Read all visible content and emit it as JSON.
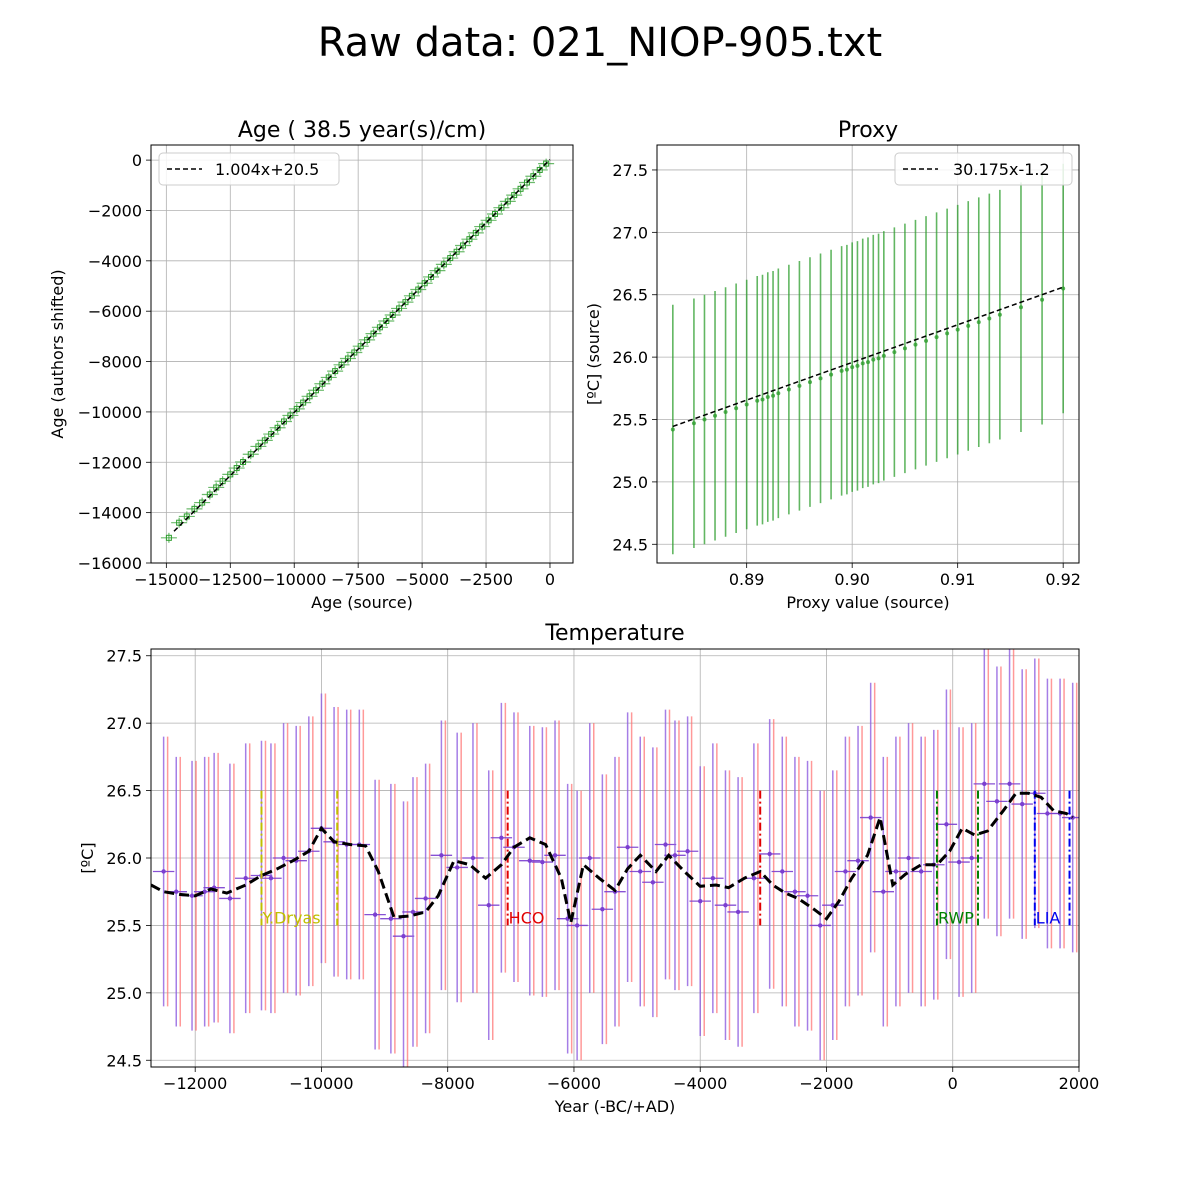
{
  "suptitle": "Raw data: 021_NIOP-905.txt",
  "chart_data": [
    {
      "type": "scatter",
      "title": "Age ( 38.5 year(s)/cm)",
      "xlabel": "Age (source)",
      "ylabel": "Age (authors shifted)",
      "xlim": [
        -15600,
        900
      ],
      "ylim": [
        -16000,
        600
      ],
      "xticks": [
        -15000,
        -12500,
        -10000,
        -7500,
        -5000,
        -2500,
        0
      ],
      "xtick_labels": [
        "−15000",
        "−12500",
        "−10000",
        "−7500",
        "−5000",
        "−2500",
        "0"
      ],
      "yticks": [
        0,
        -2000,
        -4000,
        -6000,
        -8000,
        -10000,
        -12000,
        -14000,
        -16000
      ],
      "ytick_labels": [
        "0",
        "−2000",
        "−4000",
        "−6000",
        "−8000",
        "−10000",
        "−12000",
        "−14000",
        "−16000"
      ],
      "grid": true,
      "legend_position": "top-left",
      "fit": {
        "label": "1.004x+20.5",
        "slope": 1.004,
        "intercept": 20.5,
        "x_range": [
          -14700,
          0
        ]
      },
      "colors": {
        "points": "#2e9e2e",
        "fit": "#000000"
      },
      "x": [
        -14900,
        -14500,
        -14200,
        -13900,
        -13600,
        -13300,
        -13050,
        -12800,
        -12500,
        -12250,
        -12000,
        -11700,
        -11400,
        -11150,
        -10900,
        -10650,
        -10400,
        -10150,
        -9900,
        -9650,
        -9400,
        -9150,
        -8900,
        -8650,
        -8400,
        -8150,
        -7900,
        -7650,
        -7400,
        -7150,
        -6900,
        -6650,
        -6400,
        -6150,
        -5900,
        -5650,
        -5400,
        -5150,
        -4900,
        -4650,
        -4400,
        -4150,
        -3900,
        -3650,
        -3400,
        -3150,
        -2900,
        -2650,
        -2400,
        -2150,
        -1900,
        -1650,
        -1400,
        -1150,
        -900,
        -650,
        -400,
        -150
      ],
      "y": [
        -15000,
        -14400,
        -14150,
        -13850,
        -13600,
        -13280,
        -13000,
        -12750,
        -12480,
        -12230,
        -11990,
        -11680,
        -11370,
        -11130,
        -10880,
        -10630,
        -10380,
        -10140,
        -9880,
        -9630,
        -9380,
        -9140,
        -8880,
        -8630,
        -8380,
        -8130,
        -7880,
        -7640,
        -7390,
        -7140,
        -6890,
        -6640,
        -6390,
        -6150,
        -5890,
        -5640,
        -5390,
        -5140,
        -4890,
        -4640,
        -4390,
        -4140,
        -3890,
        -3640,
        -3390,
        -3140,
        -2890,
        -2640,
        -2390,
        -2140,
        -1890,
        -1640,
        -1390,
        -1140,
        -890,
        -640,
        -390,
        -140
      ]
    },
    {
      "type": "scatter",
      "title": "Proxy",
      "xlabel": "Proxy value (source)",
      "ylabel": "[ºC] (source)",
      "xlim": [
        0.8815,
        0.9215
      ],
      "ylim": [
        24.35,
        27.7
      ],
      "xticks": [
        0.89,
        0.9,
        0.91,
        0.92
      ],
      "xtick_labels": [
        "0.89",
        "0.90",
        "0.91",
        "0.92"
      ],
      "yticks": [
        24.5,
        25.0,
        25.5,
        26.0,
        26.5,
        27.0,
        27.5
      ],
      "ytick_labels": [
        "24.5",
        "25.0",
        "25.5",
        "26.0",
        "26.5",
        "27.0",
        "27.5"
      ],
      "grid": true,
      "legend_position": "top-right",
      "fit": {
        "label": "30.175x-1.2",
        "slope": 30.175,
        "intercept": -1.2,
        "x_range": [
          0.883,
          0.92
        ]
      },
      "colors": {
        "points": "#2e9e2e",
        "fit": "#000000"
      },
      "error_half_width": 1.0,
      "x": [
        0.883,
        0.885,
        0.886,
        0.887,
        0.888,
        0.889,
        0.89,
        0.891,
        0.8915,
        0.892,
        0.8925,
        0.893,
        0.894,
        0.895,
        0.896,
        0.897,
        0.898,
        0.899,
        0.8995,
        0.9,
        0.9005,
        0.901,
        0.9015,
        0.902,
        0.9025,
        0.903,
        0.904,
        0.905,
        0.906,
        0.907,
        0.908,
        0.909,
        0.91,
        0.911,
        0.912,
        0.913,
        0.914,
        0.916,
        0.918,
        0.92
      ],
      "y": [
        25.42,
        25.47,
        25.5,
        25.53,
        25.56,
        25.59,
        25.62,
        25.65,
        25.66,
        25.68,
        25.69,
        25.71,
        25.74,
        25.77,
        25.8,
        25.83,
        25.86,
        25.89,
        25.9,
        25.92,
        25.93,
        25.95,
        25.96,
        25.98,
        25.99,
        26.01,
        26.04,
        26.07,
        26.1,
        26.13,
        26.16,
        26.19,
        26.22,
        26.25,
        26.28,
        26.31,
        26.34,
        26.4,
        26.46,
        26.55
      ]
    },
    {
      "type": "line",
      "title": "Temperature",
      "xlabel": "Year (-BC/+AD)",
      "ylabel": "[ºC]",
      "xlim": [
        -12700,
        2000
      ],
      "ylim": [
        24.45,
        27.55
      ],
      "xticks": [
        -12000,
        -10000,
        -8000,
        -6000,
        -4000,
        -2000,
        0,
        2000
      ],
      "xtick_labels": [
        "−12000",
        "−10000",
        "−8000",
        "−6000",
        "−4000",
        "−2000",
        "0",
        "2000"
      ],
      "yticks": [
        24.5,
        25.0,
        25.5,
        26.0,
        26.5,
        27.0,
        27.5
      ],
      "ytick_labels": [
        "24.5",
        "25.0",
        "25.5",
        "26.0",
        "26.5",
        "27.0",
        "27.5"
      ],
      "grid": true,
      "colors": {
        "points": "#7b3fd0",
        "errors_alt": "#ff6f6f",
        "errors_main": "#8f5fe0",
        "smooth": "#000000"
      },
      "series": [
        {
          "x": [
            -12500,
            -12300,
            -12050,
            -11850,
            -11700,
            -11450,
            -11200,
            -10950,
            -10800,
            -10600,
            -10400,
            -10200,
            -10000,
            -9800,
            -9600,
            -9400,
            -9150,
            -8900,
            -8700,
            -8550,
            -8350,
            -8100,
            -7850,
            -7600,
            -7350,
            -7150,
            -6950,
            -6700,
            -6500,
            -6300,
            -6100,
            -5950,
            -5750,
            -5550,
            -5350,
            -5150,
            -4950,
            -4750,
            -4550,
            -4400,
            -4200,
            -4000,
            -3800,
            -3600,
            -3400,
            -3150,
            -2900,
            -2700,
            -2500,
            -2300,
            -2100,
            -1900,
            -1700,
            -1500,
            -1300,
            -1100,
            -900,
            -700,
            -500,
            -300,
            -100,
            100,
            300,
            500,
            700,
            900,
            1100,
            1300,
            1500,
            1700,
            1900
          ],
          "y": [
            25.9,
            25.75,
            25.72,
            25.75,
            25.78,
            25.7,
            25.85,
            25.87,
            25.85,
            26.0,
            25.98,
            26.05,
            26.22,
            26.12,
            26.1,
            26.1,
            25.58,
            25.55,
            25.42,
            25.6,
            25.7,
            26.02,
            25.93,
            26.0,
            25.65,
            26.15,
            26.08,
            25.98,
            25.97,
            26.02,
            25.55,
            25.5,
            26.0,
            25.62,
            25.75,
            26.08,
            25.9,
            25.82,
            26.1,
            26.02,
            26.05,
            25.68,
            25.85,
            25.65,
            25.6,
            25.85,
            26.03,
            25.9,
            25.75,
            25.72,
            25.5,
            25.65,
            25.9,
            25.98,
            26.3,
            25.75,
            25.9,
            26.0,
            25.9,
            25.95,
            26.25,
            25.97,
            26.0,
            26.55,
            26.42,
            26.55,
            26.4,
            26.48,
            26.33,
            26.33,
            26.3
          ],
          "error_half_width": 1.0,
          "xerr_half_width": 170
        }
      ],
      "smooth": {
        "x": [
          -12700,
          -12500,
          -12250,
          -12000,
          -11750,
          -11500,
          -11200,
          -10950,
          -10700,
          -10450,
          -10200,
          -10000,
          -9800,
          -9550,
          -9300,
          -9100,
          -8850,
          -8600,
          -8350,
          -8150,
          -7900,
          -7650,
          -7400,
          -7150,
          -6950,
          -6700,
          -6450,
          -6200,
          -6050,
          -5850,
          -5600,
          -5350,
          -5150,
          -4950,
          -4700,
          -4500,
          -4250,
          -4000,
          -3750,
          -3550,
          -3300,
          -3050,
          -2850,
          -2650,
          -2450,
          -2200,
          -2000,
          -1800,
          -1600,
          -1350,
          -1150,
          -950,
          -750,
          -500,
          -250,
          -50,
          150,
          350,
          550,
          800,
          1000,
          1200,
          1400,
          1600,
          1800,
          1900
        ],
        "y": [
          25.8,
          25.75,
          25.73,
          25.72,
          25.77,
          25.74,
          25.8,
          25.87,
          25.92,
          25.98,
          26.05,
          26.22,
          26.12,
          26.1,
          26.09,
          25.9,
          25.56,
          25.57,
          25.6,
          25.72,
          25.98,
          25.95,
          25.85,
          25.95,
          26.08,
          26.15,
          26.1,
          25.85,
          25.52,
          25.95,
          25.85,
          25.76,
          25.92,
          26.02,
          25.9,
          26.02,
          25.9,
          25.79,
          25.8,
          25.78,
          25.85,
          25.9,
          25.8,
          25.74,
          25.7,
          25.62,
          25.55,
          25.68,
          25.85,
          26.02,
          26.3,
          25.8,
          25.88,
          25.95,
          25.95,
          26.05,
          26.22,
          26.17,
          26.2,
          26.35,
          26.48,
          26.48,
          26.45,
          26.35,
          26.33,
          26.3
        ]
      },
      "events": [
        {
          "label": "Y.Dryas",
          "x_start": -10950,
          "x_end": -9750,
          "color": "#bfbf00"
        },
        {
          "label": "HCO",
          "x_start": -7050,
          "x_end": -3050,
          "color": "#e00000"
        },
        {
          "label": "RWP",
          "x_start": -250,
          "x_end": 400,
          "color": "#008000"
        },
        {
          "label": "LIA",
          "x_start": 1300,
          "x_end": 1850,
          "color": "#0000ee"
        }
      ]
    }
  ]
}
